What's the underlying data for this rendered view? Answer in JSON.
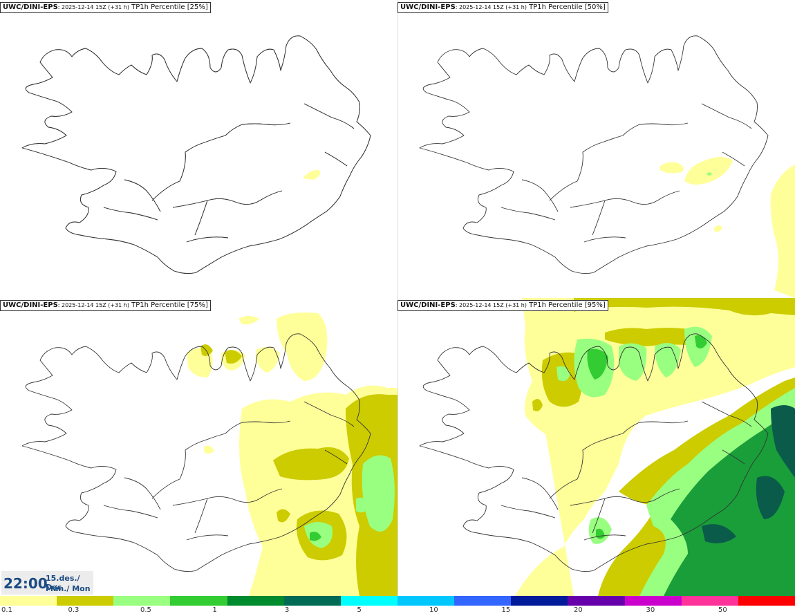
{
  "panels": [
    {
      "model": "UWC/DINI-EPS",
      "run": ": 2025-12-14 15Z (+31 h)",
      "param": " TP1h Percentile [25%]"
    },
    {
      "model": "UWC/DINI-EPS",
      "run": ": 2025-12-14 15Z (+31 h)",
      "param": " TP1h Percentile [50%]"
    },
    {
      "model": "UWC/DINI-EPS",
      "run": ": 2025-12-14 15Z (+31 h)",
      "param": " TP1h Percentile [75%]"
    },
    {
      "model": "UWC/DINI-EPS",
      "run": ": 2025-12-14 15Z (+31 h)",
      "param": " TP1h Percentile [95%]"
    }
  ],
  "valid_time": {
    "time": "22:00",
    "date_line1": "15.des./ Dec",
    "date_line2": "Mán./ Mon"
  },
  "legend": {
    "colors": [
      "#ffff99",
      "#cccc00",
      "#99ff80",
      "#33cc33",
      "#008a2e",
      "#006b55",
      "#00ffff",
      "#00c8ff",
      "#3366ff",
      "#001a99",
      "#6600aa",
      "#cc00cc",
      "#ff3399",
      "#ff0000"
    ],
    "tick_labels": [
      "0.1",
      "0.3",
      "0.5",
      "1",
      "3",
      "5",
      "10",
      "15",
      "20",
      "30",
      "50"
    ]
  },
  "colors": {
    "light_yellow": "#ffff99",
    "olive": "#cccc00",
    "light_green": "#99ff80",
    "green": "#33cc33",
    "dark_green": "#1a9e3a",
    "teal": "#0b5b4a",
    "time_text": "#1b4a82"
  }
}
